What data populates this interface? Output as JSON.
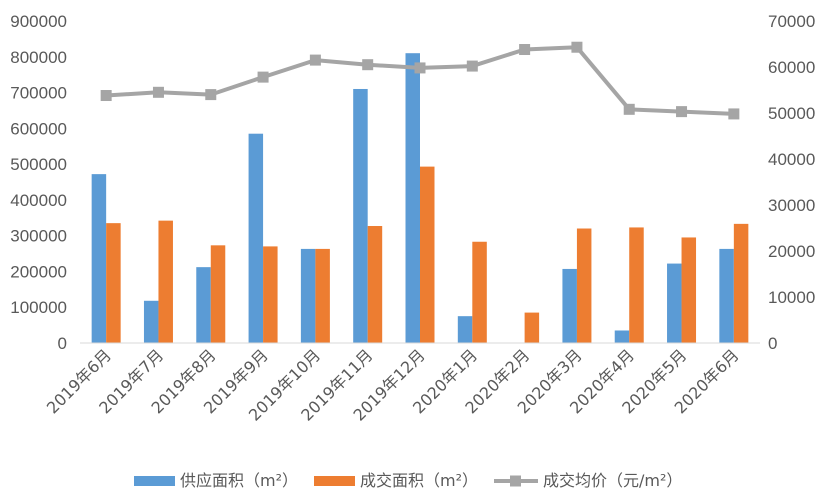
{
  "chart_data": {
    "type": "bar",
    "categories": [
      "2019年6月",
      "2019年7月",
      "2019年8月",
      "2019年9月",
      "2019年10月",
      "2019年11月",
      "2019年12月",
      "2020年1月",
      "2020年2月",
      "2020年3月",
      "2020年4月",
      "2020年5月",
      "2020年6月"
    ],
    "series": [
      {
        "name": "供应面积（m²）",
        "type": "bar",
        "axis": "left",
        "color": "#5b9bd5",
        "values": [
          472000,
          118000,
          212000,
          585000,
          263000,
          710000,
          810000,
          75000,
          0,
          207000,
          35000,
          222000,
          263000
        ]
      },
      {
        "name": "成交面积（m²）",
        "type": "bar",
        "axis": "left",
        "color": "#ed7d31",
        "values": [
          335000,
          342000,
          273000,
          270000,
          263000,
          327000,
          493000,
          283000,
          85000,
          320000,
          323000,
          295000,
          333000
        ]
      },
      {
        "name": "成交均价（元/m²）",
        "type": "line",
        "axis": "right",
        "color": "#a5a5a5",
        "marker": "square",
        "values": [
          53800,
          54500,
          54000,
          57800,
          61500,
          60500,
          59800,
          60200,
          63800,
          64300,
          50800,
          50300,
          49800
        ]
      }
    ],
    "y_left": {
      "min": 0,
      "max": 900000,
      "ticks": [
        "0",
        "100000",
        "200000",
        "300000",
        "400000",
        "500000",
        "600000",
        "700000",
        "800000",
        "900000"
      ]
    },
    "y_right": {
      "min": 0,
      "max": 70000,
      "ticks": [
        "0",
        "10000",
        "20000",
        "30000",
        "40000",
        "50000",
        "60000",
        "70000"
      ]
    },
    "grid": false,
    "legend_position": "bottom"
  }
}
